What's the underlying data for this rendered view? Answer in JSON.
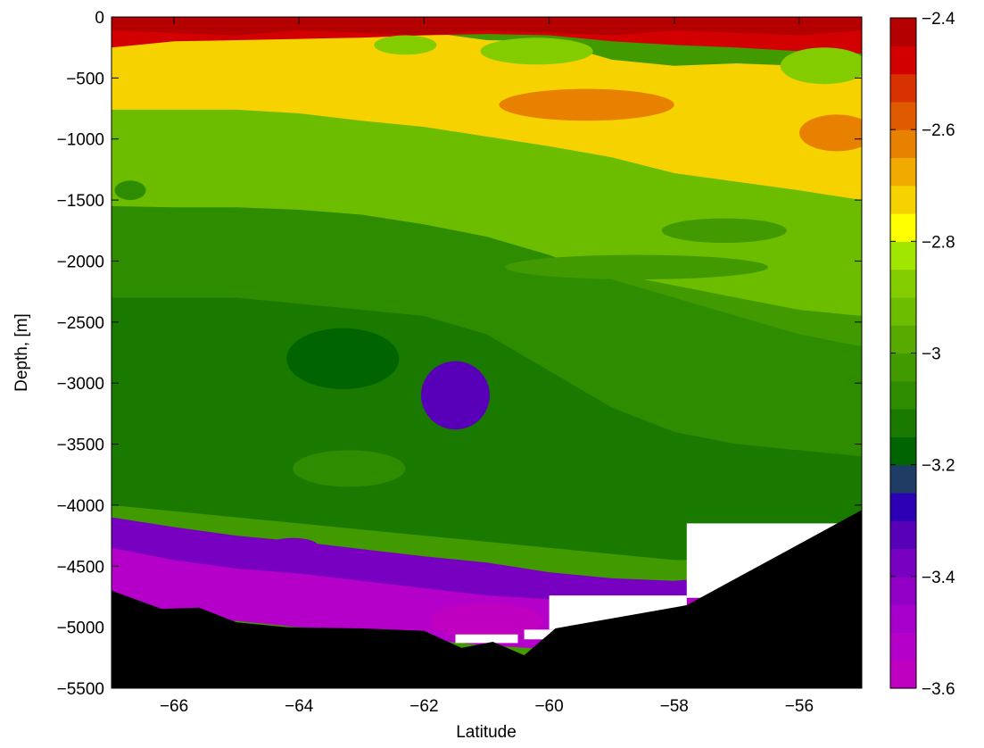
{
  "chart_data": {
    "type": "heatmap",
    "subtype": "filled-contour",
    "title": "",
    "xlabel": "Latitude",
    "ylabel": "Depth, [m]",
    "xlim": [
      -67,
      -55
    ],
    "ylim": [
      -5500,
      0
    ],
    "xticks": [
      -66,
      -64,
      -62,
      -60,
      -58,
      -56
    ],
    "yticks": [
      0,
      -500,
      -1000,
      -1500,
      -2000,
      -2500,
      -3000,
      -3500,
      -4000,
      -4500,
      -5000,
      -5500
    ],
    "grid": false,
    "colorbar": {
      "min": -3.6,
      "max": -2.4,
      "ticks": [
        -2.4,
        -2.6,
        -2.8,
        -3,
        -3.2,
        -3.4,
        -3.6
      ],
      "levels": [
        {
          "from": -3.6,
          "to": -3.55,
          "color": "#c000c0"
        },
        {
          "from": -3.55,
          "to": -3.5,
          "color": "#b400c8"
        },
        {
          "from": -3.5,
          "to": -3.45,
          "color": "#a800cc"
        },
        {
          "from": -3.45,
          "to": -3.4,
          "color": "#9200c8"
        },
        {
          "from": -3.4,
          "to": -3.35,
          "color": "#7800c0"
        },
        {
          "from": -3.35,
          "to": -3.3,
          "color": "#5800b8"
        },
        {
          "from": -3.3,
          "to": -3.25,
          "color": "#2c00b4"
        },
        {
          "from": -3.25,
          "to": -3.2,
          "color": "#1e3c64"
        },
        {
          "from": -3.2,
          "to": -3.15,
          "color": "#006400"
        },
        {
          "from": -3.15,
          "to": -3.1,
          "color": "#1a7a00"
        },
        {
          "from": -3.1,
          "to": -3.05,
          "color": "#2e8c00"
        },
        {
          "from": -3.05,
          "to": -3.0,
          "color": "#409a00"
        },
        {
          "from": -3.0,
          "to": -2.95,
          "color": "#56aa00"
        },
        {
          "from": -2.95,
          "to": -2.9,
          "color": "#6cbc00"
        },
        {
          "from": -2.9,
          "to": -2.85,
          "color": "#82cc00"
        },
        {
          "from": -2.85,
          "to": -2.8,
          "color": "#a0e600"
        },
        {
          "from": -2.8,
          "to": -2.75,
          "color": "#ffff00"
        },
        {
          "from": -2.75,
          "to": -2.7,
          "color": "#f5d200"
        },
        {
          "from": -2.7,
          "to": -2.65,
          "color": "#f0aa00"
        },
        {
          "from": -2.65,
          "to": -2.6,
          "color": "#e88000"
        },
        {
          "from": -2.6,
          "to": -2.55,
          "color": "#e05a00"
        },
        {
          "from": -2.55,
          "to": -2.5,
          "color": "#d83200"
        },
        {
          "from": -2.5,
          "to": -2.45,
          "color": "#d20000"
        },
        {
          "from": -2.45,
          "to": -2.4,
          "color": "#b40000"
        }
      ]
    },
    "bathymetry": {
      "lat": [
        -67,
        -66.2,
        -65.6,
        -65,
        -64.2,
        -63,
        -62,
        -61.4,
        -60.9,
        -60.4,
        -59.9,
        -57.8,
        -55
      ],
      "depth": [
        -4700,
        -4850,
        -4840,
        -4960,
        -5000,
        -5010,
        -5030,
        -5170,
        -5120,
        -5230,
        -5010,
        -4820,
        -4040
      ]
    },
    "contour_bands": [
      {
        "value": -2.9,
        "top": [
          -700,
          -690,
          -690,
          -700,
          -720,
          -730,
          -760,
          -800,
          -870,
          -1000,
          -1160,
          -1330,
          -1450
        ],
        "bottom": [
          -2100,
          -2150,
          -2150,
          -2100,
          -2050,
          -2000,
          -2000,
          -2050,
          -2100,
          -2200,
          -2300,
          -2400,
          -2450
        ]
      },
      {
        "value": -3.05,
        "top": [
          -1550,
          -1560,
          -1560,
          -1580,
          -1620,
          -1700,
          -1800,
          -1950,
          -2150,
          -2300,
          -2450,
          -2600,
          -2700
        ],
        "bottom": [
          -3400,
          -3450,
          -3450,
          -3500,
          -3550,
          -3600,
          -3650,
          -3700,
          -3750,
          -3800,
          -3850,
          -3900,
          -3950
        ]
      },
      {
        "value": -3.1,
        "top": [
          -2300,
          -2300,
          -2300,
          -2350,
          -2400,
          -2450,
          -2600,
          -2900,
          -3200,
          -3400,
          -3500,
          -3550,
          -3600
        ],
        "bottom": [
          -4000,
          -4050,
          -4100,
          -4150,
          -4200,
          -4250,
          -4300,
          -4350,
          -4400,
          -4450,
          -4450,
          -4400,
          -4200
        ]
      },
      {
        "value": -3.35,
        "top": [
          -4100,
          -4180,
          -4250,
          -4300,
          -4360,
          -4420,
          -4470,
          -4550,
          -4600,
          -4620,
          -4580,
          -4500,
          -4100
        ],
        "bottom": [
          -4400,
          -4500,
          -4550,
          -4580,
          -4640,
          -4700,
          -4760,
          -4780,
          -4800,
          -4780,
          -4760,
          -4700,
          -4300
        ]
      },
      {
        "value": -3.5,
        "top": [
          -4350,
          -4450,
          -4520,
          -4560,
          -4620,
          -4680,
          -4740,
          -4770,
          -4790,
          -4770,
          -4750,
          -4700,
          -4300
        ],
        "bottom": [
          -4900,
          -4950,
          -4950,
          -5000,
          -5050,
          -5100,
          -5150,
          -5180,
          -5200,
          -5200,
          -5150,
          -4900,
          -4300
        ]
      },
      {
        "value": -2.6,
        "top": [
          -230,
          -230,
          -230,
          -220,
          -220,
          -250,
          -300,
          -360,
          -420,
          -480,
          -520,
          -520,
          -560
        ],
        "bottom": [
          -560,
          -540,
          -550,
          -590,
          -620,
          -650,
          -700,
          -760,
          -820,
          -900,
          -980,
          -1060,
          -1150
        ]
      },
      {
        "value": -2.7,
        "top": [
          -100,
          -180,
          -150,
          -120,
          -100,
          -120,
          -190,
          -200,
          -350,
          -400,
          -380,
          -400,
          -460
        ],
        "bottom": [
          -760,
          -760,
          -760,
          -790,
          -850,
          -900,
          -980,
          -1060,
          -1150,
          -1280,
          -1350,
          -1420,
          -1500
        ]
      },
      {
        "value": -2.45,
        "top": [
          0,
          0,
          0,
          0,
          0,
          0,
          0,
          0,
          0,
          0,
          0,
          0,
          0
        ],
        "bottom": [
          -250,
          -200,
          -190,
          -180,
          -170,
          -150,
          -140,
          -150,
          -200,
          -230,
          -250,
          -280,
          -300
        ]
      }
    ],
    "patches": [
      {
        "value": -3.3,
        "lat": -61.5,
        "depth": -3100,
        "rlat": 0.55,
        "rdepth": 280
      },
      {
        "value": -2.85,
        "lat": -60.2,
        "depth": -280,
        "rlat": 0.9,
        "rdepth": 110
      },
      {
        "value": -2.85,
        "lat": -62.3,
        "depth": -230,
        "rlat": 0.5,
        "rdepth": 80
      },
      {
        "value": -2.85,
        "lat": -55.6,
        "depth": -400,
        "rlat": 0.7,
        "rdepth": 150
      },
      {
        "value": -2.6,
        "lat": -59.4,
        "depth": -720,
        "rlat": 1.4,
        "rdepth": 130
      },
      {
        "value": -2.6,
        "lat": -55.4,
        "depth": -950,
        "rlat": 0.6,
        "rdepth": 150
      },
      {
        "value": -3.0,
        "lat": -57.2,
        "depth": -1750,
        "rlat": 1.0,
        "rdepth": 100
      },
      {
        "value": -3.0,
        "lat": -58.6,
        "depth": -2050,
        "rlat": 2.1,
        "rdepth": 100
      },
      {
        "value": -3.05,
        "lat": -66.7,
        "depth": -1420,
        "rlat": 0.25,
        "rdepth": 80
      },
      {
        "value": -3.15,
        "lat": -63.3,
        "depth": -2800,
        "rlat": 0.9,
        "rdepth": 250
      },
      {
        "value": -3.05,
        "lat": -63.2,
        "depth": -3700,
        "rlat": 0.9,
        "rdepth": 150
      },
      {
        "value": -3.35,
        "lat": -64.1,
        "depth": -4330,
        "rlat": 0.4,
        "rdepth": 60
      },
      {
        "value": -3.55,
        "lat": -61.0,
        "depth": -4950,
        "rlat": 0.9,
        "rdepth": 140
      }
    ],
    "missing_regions": [
      {
        "lat": [
          -57.8,
          -55.2,
          -55.2,
          -57.8
        ],
        "depth": [
          -4150,
          -4150,
          -4760,
          -4760
        ]
      },
      {
        "lat": [
          -60,
          -57.8,
          -57.8,
          -60
        ],
        "depth": [
          -4740,
          -4740,
          -5020,
          -5020
        ]
      },
      {
        "lat": [
          -61.5,
          -60.5,
          -60.5,
          -61.5
        ],
        "depth": [
          -5060,
          -5060,
          -5130,
          -5130
        ]
      },
      {
        "lat": [
          -60.4,
          -59.9,
          -59.9,
          -60.4
        ],
        "depth": [
          -5020,
          -5020,
          -5100,
          -5100
        ]
      }
    ]
  }
}
